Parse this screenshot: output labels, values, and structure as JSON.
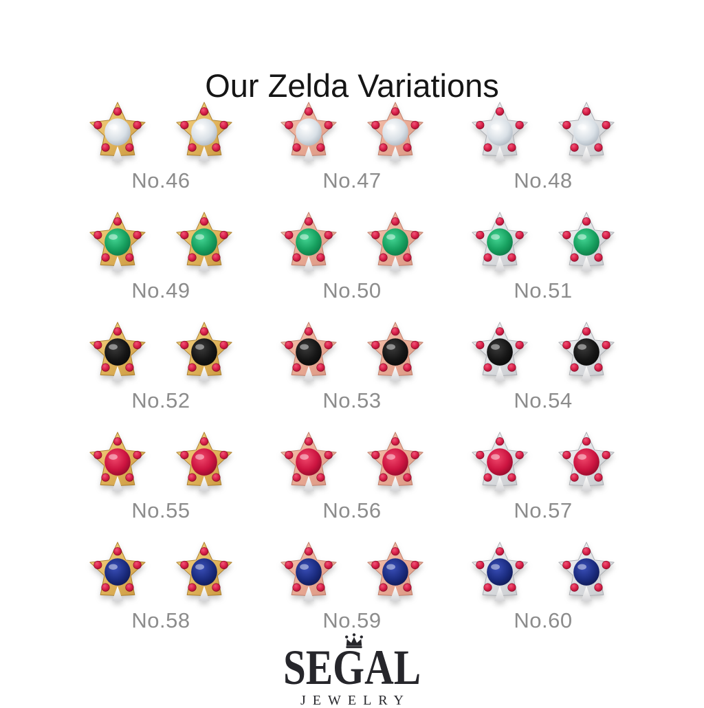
{
  "title": "Our Zelda Variations",
  "products": [
    {
      "label": "No.46",
      "metal": "yellow-gold",
      "stone": "diamond"
    },
    {
      "label": "No.47",
      "metal": "rose-gold",
      "stone": "diamond"
    },
    {
      "label": "No.48",
      "metal": "white-gold",
      "stone": "diamond"
    },
    {
      "label": "No.49",
      "metal": "yellow-gold",
      "stone": "emerald"
    },
    {
      "label": "No.50",
      "metal": "rose-gold",
      "stone": "emerald"
    },
    {
      "label": "No.51",
      "metal": "white-gold",
      "stone": "emerald"
    },
    {
      "label": "No.52",
      "metal": "yellow-gold",
      "stone": "black"
    },
    {
      "label": "No.53",
      "metal": "rose-gold",
      "stone": "black"
    },
    {
      "label": "No.54",
      "metal": "white-gold",
      "stone": "black"
    },
    {
      "label": "No.55",
      "metal": "yellow-gold",
      "stone": "ruby"
    },
    {
      "label": "No.56",
      "metal": "rose-gold",
      "stone": "ruby"
    },
    {
      "label": "No.57",
      "metal": "white-gold",
      "stone": "ruby"
    },
    {
      "label": "No.58",
      "metal": "yellow-gold",
      "stone": "sapphire"
    },
    {
      "label": "No.59",
      "metal": "rose-gold",
      "stone": "sapphire"
    },
    {
      "label": "No.60",
      "metal": "white-gold",
      "stone": "sapphire"
    }
  ],
  "logo": {
    "brand": "SEGAL",
    "tagline": "JEWELRY",
    "icon": "crown-icon"
  },
  "colors": {
    "background": "#FFFFFF",
    "title_text": "#151515",
    "label_text": "#8C8C8C",
    "logo_text": "#26262B",
    "metals": {
      "yellow-gold": {
        "light": "#F6D98C",
        "mid": "#E3B75F",
        "dark": "#C8963E",
        "edge": "#A87B28"
      },
      "rose-gold": {
        "light": "#F6C5B2",
        "mid": "#EBAD97",
        "dark": "#D99582",
        "edge": "#BC7A66"
      },
      "white-gold": {
        "light": "#F5F5F7",
        "mid": "#DFE1E4",
        "dark": "#C4C6CA",
        "edge": "#A8ABB0"
      }
    },
    "stones": {
      "diamond": {
        "light": "#FFFFFF",
        "mid": "#D9E0E6",
        "dark": "#9FA9B4"
      },
      "emerald": {
        "light": "#45D695",
        "mid": "#17A05F",
        "dark": "#0B6B3E"
      },
      "black": {
        "light": "#3A3A3A",
        "mid": "#161616",
        "dark": "#050505"
      },
      "ruby": {
        "light": "#F0486C",
        "mid": "#CC1440",
        "dark": "#7E0823"
      },
      "sapphire": {
        "light": "#3A4FB8",
        "mid": "#1B2C80",
        "dark": "#0C1345"
      }
    },
    "accent_stone": {
      "light": "#F05578",
      "mid": "#D81F48",
      "dark": "#8E0A28",
      "edge": "#7A0620"
    },
    "post": {
      "light": "#FFFFFF",
      "dark": "#D5D5D7"
    }
  }
}
